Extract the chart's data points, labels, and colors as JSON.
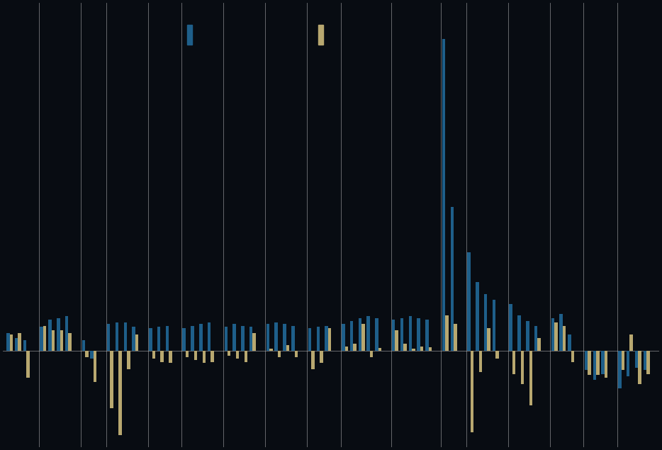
{
  "background_color": "#080c12",
  "bar_color_blue": "#1e5f8a",
  "bar_color_gold": "#b8a870",
  "grid_color": "#d0d0d0",
  "figsize": [
    9.34,
    6.35
  ],
  "dpi": 100,
  "ylim": [
    -1.6,
    5.8
  ],
  "groups": [
    {
      "b": [
        0.3,
        0.22,
        0.18
      ],
      "g": [
        0.28,
        0.3,
        -0.45
      ]
    },
    {
      "b": [
        0.4,
        0.52,
        0.55,
        0.58
      ],
      "g": [
        0.42,
        0.35,
        0.35,
        0.3
      ]
    },
    {
      "b": [
        0.18,
        -0.12
      ],
      "g": [
        -0.1,
        -0.52
      ]
    },
    {
      "b": [
        0.45,
        0.48,
        0.48,
        0.4
      ],
      "g": [
        -0.95,
        -1.4,
        -0.3,
        0.28
      ]
    },
    {
      "b": [
        0.38,
        0.4,
        0.42
      ],
      "g": [
        -0.12,
        -0.18,
        -0.2
      ]
    },
    {
      "b": [
        0.38,
        0.42,
        0.45,
        0.48
      ],
      "g": [
        -0.1,
        -0.15,
        -0.2,
        -0.18
      ]
    },
    {
      "b": [
        0.4,
        0.45,
        0.42,
        0.4
      ],
      "g": [
        -0.08,
        -0.12,
        -0.18,
        0.3
      ]
    },
    {
      "b": [
        0.45,
        0.48,
        0.45,
        0.42
      ],
      "g": [
        0.04,
        -0.1,
        0.1,
        -0.1
      ]
    },
    {
      "b": [
        0.38,
        0.4,
        0.42
      ],
      "g": [
        -0.3,
        -0.2,
        0.38
      ]
    },
    {
      "b": [
        0.45,
        0.5,
        0.55,
        0.58,
        0.55
      ],
      "g": [
        0.08,
        0.12,
        0.45,
        -0.1,
        0.05
      ]
    },
    {
      "b": [
        0.52,
        0.55,
        0.58,
        0.55,
        0.52
      ],
      "g": [
        0.35,
        0.12,
        0.04,
        0.08,
        0.06
      ]
    },
    {
      "b": [
        5.2,
        2.4
      ],
      "g": [
        0.6,
        0.45
      ]
    },
    {
      "b": [
        1.65,
        1.15,
        0.95,
        0.85
      ],
      "g": [
        -1.35,
        -0.35,
        0.38,
        -0.12
      ]
    },
    {
      "b": [
        0.78,
        0.6,
        0.5,
        0.42
      ],
      "g": [
        -0.38,
        -0.55,
        -0.9,
        0.22
      ]
    },
    {
      "b": [
        0.55,
        0.62,
        0.28
      ],
      "g": [
        0.48,
        0.42,
        -0.18
      ]
    },
    {
      "b": [
        -0.32,
        -0.48,
        -0.38
      ],
      "g": [
        -0.4,
        -0.4,
        -0.45
      ]
    },
    {
      "b": [
        -0.62,
        -0.42,
        -0.28,
        -0.32
      ],
      "g": [
        -0.32,
        0.28,
        -0.55,
        -0.38
      ]
    }
  ]
}
